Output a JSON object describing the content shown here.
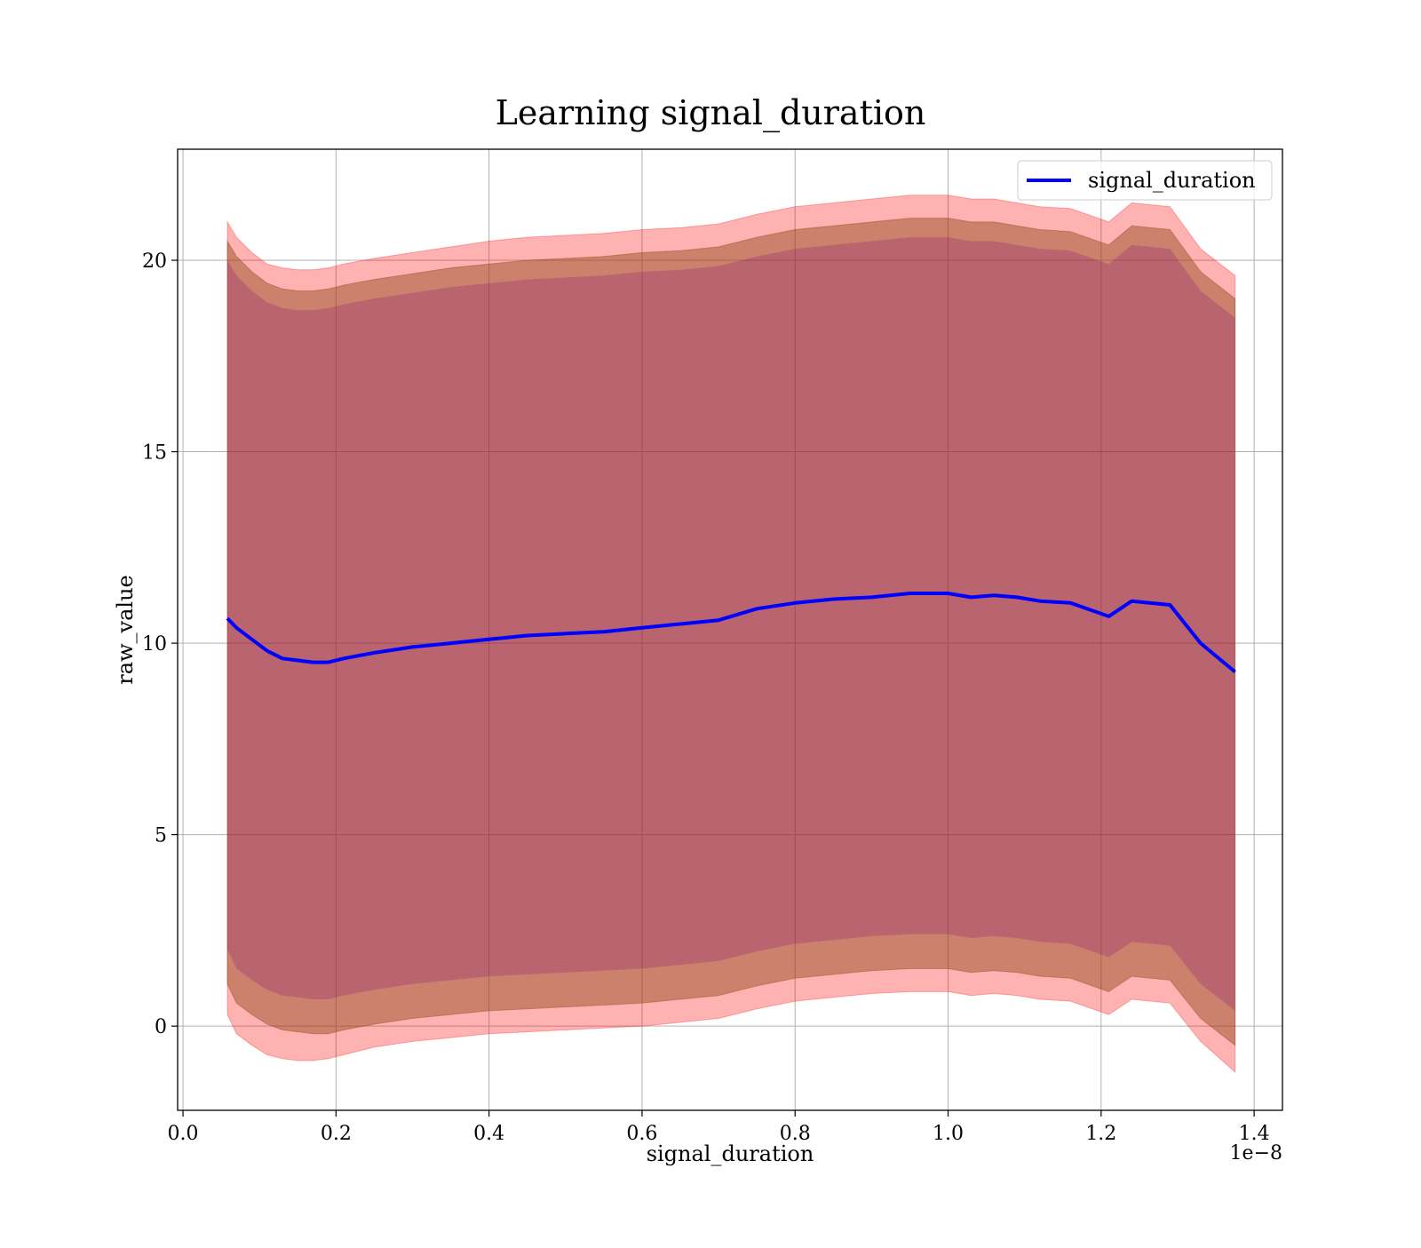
{
  "chart_data": {
    "type": "area",
    "title": "Learning signal_duration",
    "xlabel": "signal_duration",
    "ylabel": "raw_value",
    "x_offset_label": "1e−8",
    "xlim": [
      -0.007,
      1.437
    ],
    "ylim": [
      -2.2,
      22.9
    ],
    "x_ticks": [
      0.0,
      0.2,
      0.4,
      0.6,
      0.8,
      1.0,
      1.2,
      1.4
    ],
    "x_tick_labels": [
      "0.0",
      "0.2",
      "0.4",
      "0.6",
      "0.8",
      "1.0",
      "1.2",
      "1.4"
    ],
    "y_ticks": [
      0,
      5,
      10,
      15,
      20
    ],
    "y_tick_labels": [
      "0",
      "5",
      "10",
      "15",
      "20"
    ],
    "grid": true,
    "legend_position": "top-right",
    "colors": {
      "line": "#0000ff",
      "outer_band": "#ff0000",
      "inner_band": "#8b4513",
      "band_overlap": "#800080",
      "grid": "#b0b0b0"
    },
    "x": [
      0.058,
      0.07,
      0.09,
      0.11,
      0.13,
      0.15,
      0.17,
      0.19,
      0.21,
      0.25,
      0.3,
      0.35,
      0.4,
      0.45,
      0.5,
      0.55,
      0.6,
      0.65,
      0.7,
      0.75,
      0.8,
      0.85,
      0.9,
      0.95,
      1.0,
      1.03,
      1.06,
      1.09,
      1.12,
      1.16,
      1.21,
      1.24,
      1.29,
      1.33,
      1.375
    ],
    "series": [
      {
        "name": "signal_duration",
        "values": [
          10.65,
          10.4,
          10.1,
          9.8,
          9.6,
          9.55,
          9.5,
          9.5,
          9.6,
          9.75,
          9.9,
          10.0,
          10.1,
          10.2,
          10.25,
          10.3,
          10.4,
          10.5,
          10.6,
          10.9,
          11.05,
          11.15,
          11.2,
          11.3,
          11.3,
          11.2,
          11.25,
          11.2,
          11.1,
          11.05,
          10.7,
          11.1,
          11.0,
          10.0,
          9.25
        ]
      }
    ],
    "bands": [
      {
        "upper": [
          21.0,
          20.6,
          20.2,
          19.9,
          19.8,
          19.75,
          19.75,
          19.8,
          19.9,
          20.05,
          20.2,
          20.35,
          20.5,
          20.6,
          20.65,
          20.7,
          20.8,
          20.85,
          20.95,
          21.2,
          21.4,
          21.5,
          21.6,
          21.7,
          21.7,
          21.6,
          21.6,
          21.5,
          21.4,
          21.35,
          21.0,
          21.5,
          21.4,
          20.3,
          19.6
        ],
        "lower": [
          0.3,
          -0.2,
          -0.5,
          -0.75,
          -0.85,
          -0.9,
          -0.9,
          -0.85,
          -0.75,
          -0.55,
          -0.4,
          -0.3,
          -0.2,
          -0.15,
          -0.1,
          -0.05,
          0.0,
          0.1,
          0.2,
          0.45,
          0.65,
          0.75,
          0.85,
          0.9,
          0.9,
          0.8,
          0.85,
          0.8,
          0.7,
          0.65,
          0.3,
          0.7,
          0.6,
          -0.4,
          -1.2
        ]
      },
      {
        "upper": [
          20.5,
          20.1,
          19.7,
          19.4,
          19.25,
          19.2,
          19.2,
          19.25,
          19.35,
          19.5,
          19.65,
          19.8,
          19.9,
          20.0,
          20.05,
          20.1,
          20.2,
          20.25,
          20.35,
          20.6,
          20.8,
          20.9,
          21.0,
          21.1,
          21.1,
          21.0,
          21.0,
          20.9,
          20.8,
          20.75,
          20.4,
          20.9,
          20.8,
          19.7,
          19.0
        ],
        "lower": [
          1.1,
          0.6,
          0.3,
          0.05,
          -0.1,
          -0.15,
          -0.2,
          -0.2,
          -0.1,
          0.05,
          0.2,
          0.3,
          0.4,
          0.45,
          0.5,
          0.55,
          0.6,
          0.7,
          0.8,
          1.05,
          1.25,
          1.35,
          1.45,
          1.5,
          1.5,
          1.4,
          1.45,
          1.4,
          1.3,
          1.25,
          0.9,
          1.3,
          1.2,
          0.2,
          -0.5
        ]
      }
    ]
  }
}
